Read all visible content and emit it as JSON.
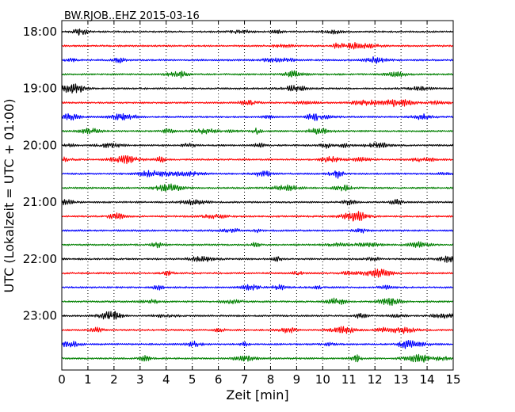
{
  "chart_data": {
    "type": "line",
    "chart_kind": "seismogram dayplot",
    "title": "BW.RJOB..EHZ 2015-03-16",
    "xlabel": "Zeit  [min]",
    "ylabel": "UTC (Lokalzeit = UTC + 01:00)",
    "xlim": [
      0,
      15
    ],
    "xticks": [
      "0",
      "1",
      "2",
      "3",
      "4",
      "5",
      "6",
      "7",
      "8",
      "9",
      "10",
      "11",
      "12",
      "13",
      "14",
      "15"
    ],
    "yticks": [
      "18:00",
      "19:00",
      "20:00",
      "21:00",
      "22:00",
      "23:00"
    ],
    "rows_per_hour": 4,
    "row_count": 24,
    "row_minutes": 15,
    "grid": "vertical dotted lines at each minute",
    "legend": "none",
    "series_colors": [
      "#000000",
      "#ff0000",
      "#0000ff",
      "#008000"
    ],
    "series": [
      {
        "start": "18:00",
        "color": "#000000"
      },
      {
        "start": "18:15",
        "color": "#ff0000"
      },
      {
        "start": "18:30",
        "color": "#0000ff"
      },
      {
        "start": "18:45",
        "color": "#008000"
      },
      {
        "start": "19:00",
        "color": "#000000"
      },
      {
        "start": "19:15",
        "color": "#ff0000"
      },
      {
        "start": "19:30",
        "color": "#0000ff"
      },
      {
        "start": "19:45",
        "color": "#008000"
      },
      {
        "start": "20:00",
        "color": "#000000"
      },
      {
        "start": "20:15",
        "color": "#ff0000"
      },
      {
        "start": "20:30",
        "color": "#0000ff"
      },
      {
        "start": "20:45",
        "color": "#008000"
      },
      {
        "start": "21:00",
        "color": "#000000"
      },
      {
        "start": "21:15",
        "color": "#ff0000"
      },
      {
        "start": "21:30",
        "color": "#0000ff"
      },
      {
        "start": "21:45",
        "color": "#008000"
      },
      {
        "start": "22:00",
        "color": "#000000"
      },
      {
        "start": "22:15",
        "color": "#ff0000"
      },
      {
        "start": "22:30",
        "color": "#0000ff"
      },
      {
        "start": "22:45",
        "color": "#008000"
      },
      {
        "start": "23:00",
        "color": "#000000"
      },
      {
        "start": "23:15",
        "color": "#ff0000"
      },
      {
        "start": "23:30",
        "color": "#0000ff"
      },
      {
        "start": "23:45",
        "color": "#008000"
      }
    ]
  }
}
